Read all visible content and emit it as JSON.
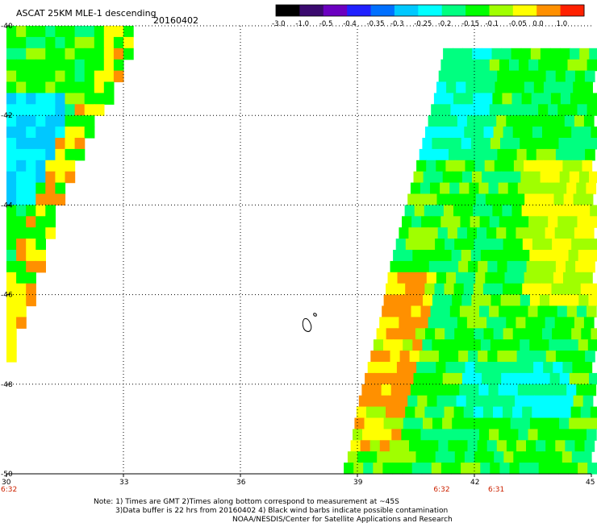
{
  "chart_data": {
    "type": "heatmap",
    "title": "ASCAT 25KM MLE-1 descending",
    "date": "20160402",
    "colorbar": {
      "ticks": [
        "-3.0",
        "-1.0",
        "-0.5",
        "-0.4",
        "-0.35",
        "-0.3",
        "-0.25",
        "-0.2",
        "-0.15",
        "-0.1",
        "-0.05",
        "0.0",
        "1.0"
      ],
      "colors": [
        "#000000",
        "#3a0a6e",
        "#6b00c0",
        "#2020ff",
        "#0070ff",
        "#00c8ff",
        "#00ffff",
        "#00ff80",
        "#00ff00",
        "#a0ff00",
        "#ffff00",
        "#ff9000",
        "#ff2000"
      ]
    },
    "x_ticks": [
      30,
      33,
      36,
      39,
      42,
      45
    ],
    "y_ticks": [
      -40,
      -42,
      -44,
      -46,
      -48,
      -50
    ],
    "xlim": [
      30,
      45
    ],
    "ylim": [
      -50,
      -40
    ],
    "times": [
      {
        "label": "6:32",
        "lon": 30
      },
      {
        "label": "6:32",
        "lon": 41.2
      },
      {
        "label": "6:31",
        "lon": 42.6
      }
    ],
    "swaths": [
      {
        "name": "west",
        "edge_lat": [
          -40.0,
          -41.0,
          -42.0,
          -43.0,
          -44.0,
          -45.0,
          -46.0,
          -47.0,
          -47.4
        ],
        "edge_lon": [
          33.2,
          32.9,
          32.3,
          31.7,
          31.3,
          30.9,
          30.6,
          30.2,
          30.0
        ]
      },
      {
        "name": "east",
        "edge_lat": [
          -40.6,
          -41.5,
          -42.5,
          -43.5,
          -44.5,
          -45.5,
          -46.5,
          -47.5,
          -48.5,
          -49.5,
          -50.0
        ],
        "edge_lon": [
          41.2,
          41.0,
          40.7,
          40.4,
          40.1,
          39.8,
          39.6,
          39.3,
          39.0,
          38.8,
          38.6
        ]
      }
    ],
    "color_zones": [
      {
        "lat": [
          -40,
          -44
        ],
        "lon_from_edge": 0.6,
        "level": "-0.1"
      },
      {
        "lat": [
          -43,
          -46
        ],
        "lon": [
          43.5,
          45
        ],
        "level": "-0.05"
      },
      {
        "lat": [
          -45.8,
          -49.5
        ],
        "lon_from_edge": 0.9,
        "level": "0.0"
      },
      {
        "lat": [
          -47.5,
          -48.8
        ],
        "lon": [
          41.5,
          44.5
        ],
        "level": "-0.25"
      }
    ],
    "notes": [
      "Note: 1) Times are GMT 2)Times along bottom correspond to measurement at ~45S",
      "3)Data buffer is 22 hrs from 20160402 4) Black wind barbs indicate possible contamination",
      "NOAA/NESDIS/Center for Satellite Applications and Research"
    ]
  }
}
